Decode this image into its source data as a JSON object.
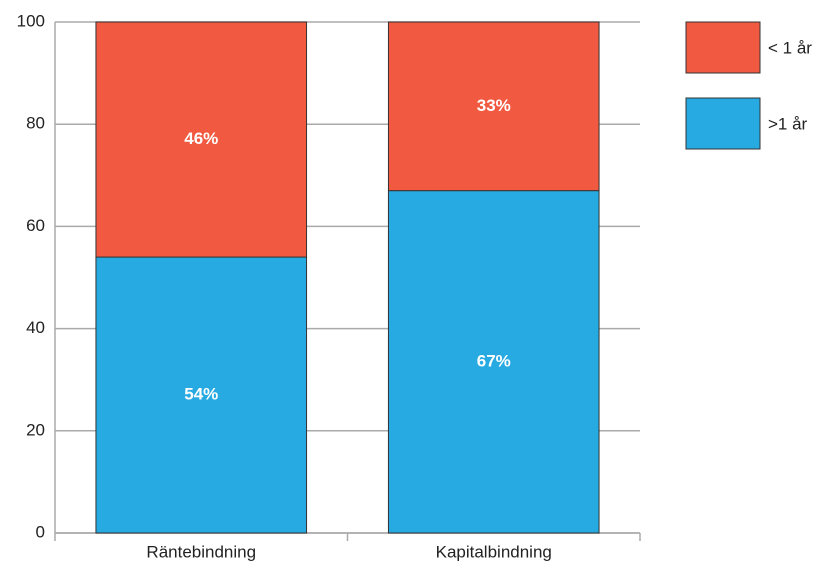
{
  "chart_data": {
    "type": "stacked_bar",
    "categories": [
      "Räntebindning",
      "Kapitalbindning"
    ],
    "series": [
      {
        "name": ">1 år",
        "color": "#27a9e1",
        "values": [
          54,
          67
        ],
        "value_labels": [
          "54%",
          "67%"
        ]
      },
      {
        "name": "< 1 år",
        "color": "#f15a40",
        "values": [
          46,
          33
        ],
        "value_labels": [
          "46%",
          "33%"
        ]
      }
    ],
    "ylim": [
      0,
      100
    ],
    "yticks": [
      0,
      20,
      40,
      60,
      80,
      100
    ],
    "grid": true,
    "legend": "right"
  }
}
